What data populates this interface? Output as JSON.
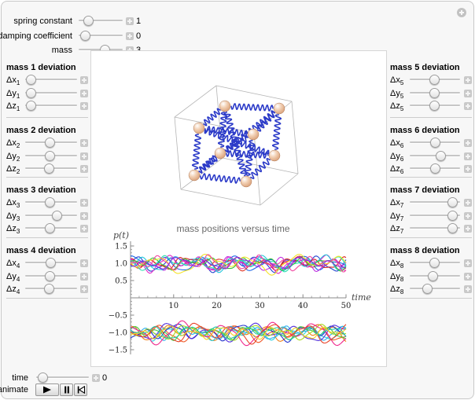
{
  "icons": {
    "stepper": "plus-icon",
    "corner": "plus-circle-icon",
    "animate_buttons": [
      "play-icon",
      "pause-icon",
      "reset-to-start-icon"
    ]
  },
  "top_sliders": [
    {
      "label": "spring constant",
      "value": "1",
      "fraction": 0.13
    },
    {
      "label": "damping coefficient",
      "value": "0",
      "fraction": 0.04
    },
    {
      "label": "mass",
      "value": "3",
      "fraction": 0.62
    }
  ],
  "mass_groups": [
    {
      "title": "mass 1 deviation",
      "side": "left",
      "rows": [
        {
          "base": "Δx",
          "sub": "1",
          "fraction": 0.02
        },
        {
          "base": "Δy",
          "sub": "1",
          "fraction": 0.02
        },
        {
          "base": "Δz",
          "sub": "1",
          "fraction": 0.02
        }
      ]
    },
    {
      "title": "mass 2 deviation",
      "side": "left",
      "rows": [
        {
          "base": "Δx",
          "sub": "2",
          "fraction": 0.48
        },
        {
          "base": "Δy",
          "sub": "2",
          "fraction": 0.48
        },
        {
          "base": "Δz",
          "sub": "2",
          "fraction": 0.45
        }
      ]
    },
    {
      "title": "mass 3 deviation",
      "side": "left",
      "rows": [
        {
          "base": "Δx",
          "sub": "3",
          "fraction": 0.48
        },
        {
          "base": "Δy",
          "sub": "3",
          "fraction": 0.64
        },
        {
          "base": "Δz",
          "sub": "3",
          "fraction": 0.48
        }
      ]
    },
    {
      "title": "mass 4 deviation",
      "side": "left",
      "rows": [
        {
          "base": "Δx",
          "sub": "4",
          "fraction": 0.49
        },
        {
          "base": "Δy",
          "sub": "4",
          "fraction": 0.48
        },
        {
          "base": "Δz",
          "sub": "4",
          "fraction": 0.45
        }
      ]
    },
    {
      "title": "mass 5 deviation",
      "side": "right",
      "rows": [
        {
          "base": "Δx",
          "sub": "5",
          "fraction": 0.49
        },
        {
          "base": "Δy",
          "sub": "5",
          "fraction": 0.49
        },
        {
          "base": "Δz",
          "sub": "5",
          "fraction": 0.49
        }
      ]
    },
    {
      "title": "mass 6 deviation",
      "side": "right",
      "rows": [
        {
          "base": "Δx",
          "sub": "6",
          "fraction": 0.5
        },
        {
          "base": "Δy",
          "sub": "6",
          "fraction": 0.65
        },
        {
          "base": "Δz",
          "sub": "6",
          "fraction": 0.5
        }
      ]
    },
    {
      "title": "mass 7 deviation",
      "side": "right",
      "rows": [
        {
          "base": "Δx",
          "sub": "7",
          "fraction": 0.95
        },
        {
          "base": "Δy",
          "sub": "7",
          "fraction": 0.95
        },
        {
          "base": "Δz",
          "sub": "7",
          "fraction": 0.95
        }
      ]
    },
    {
      "title": "mass 8 deviation",
      "side": "right",
      "rows": [
        {
          "base": "Δx",
          "sub": "8",
          "fraction": 0.49
        },
        {
          "base": "Δy",
          "sub": "8",
          "fraction": 0.45
        },
        {
          "base": "Δz",
          "sub": "8",
          "fraction": 0.32
        }
      ]
    }
  ],
  "content": {
    "title": "mass positions versus time"
  },
  "bottom": {
    "time_label": "time",
    "time_value": "0",
    "time_fraction": 0.04,
    "animate_label": "animate"
  },
  "scene": {
    "box_corners": {
      "tb": [
        117,
        30
      ],
      "tr": [
        213,
        50
      ],
      "tf": [
        165,
        90
      ],
      "tl": [
        64,
        70
      ],
      "bb": [
        125,
        122
      ],
      "br": [
        221,
        142
      ],
      "bf": [
        173,
        182
      ],
      "bl": [
        72,
        162
      ]
    },
    "box_edges": [
      [
        "tb",
        "tr"
      ],
      [
        "tr",
        "tf"
      ],
      [
        "tf",
        "tl"
      ],
      [
        "tl",
        "tb"
      ],
      [
        "bb",
        "br"
      ],
      [
        "br",
        "bf"
      ],
      [
        "bf",
        "bl"
      ],
      [
        "bl",
        "bb"
      ],
      [
        "tb",
        "bb"
      ],
      [
        "tr",
        "br"
      ],
      [
        "tf",
        "bf"
      ],
      [
        "tl",
        "bl"
      ]
    ],
    "masses": [
      [
        128,
        56
      ],
      [
        197,
        59
      ],
      [
        164,
        92
      ],
      [
        95,
        84
      ],
      [
        122,
        116
      ],
      [
        191,
        119
      ],
      [
        155,
        152
      ],
      [
        89,
        144
      ]
    ],
    "springs": [
      [
        0,
        1
      ],
      [
        1,
        2
      ],
      [
        2,
        3
      ],
      [
        3,
        0
      ],
      [
        4,
        5
      ],
      [
        5,
        6
      ],
      [
        6,
        7
      ],
      [
        7,
        4
      ],
      [
        0,
        4
      ],
      [
        1,
        5
      ],
      [
        2,
        6
      ],
      [
        3,
        7
      ],
      [
        0,
        6
      ],
      [
        1,
        7
      ],
      [
        2,
        4
      ],
      [
        3,
        5
      ]
    ],
    "spring_color": "#2b3ac8",
    "box_color": "#b5b5b5",
    "sphere_colors": {
      "highlight": "#ffffff",
      "mid": "#f2d0b4",
      "dark": "#d9a078",
      "edge": "#b07a58"
    }
  },
  "chart_data": {
    "type": "line",
    "title": "mass positions versus time",
    "xlabel": "time",
    "ylabel": "p(t)",
    "xlim": [
      0,
      50
    ],
    "ylim": [
      -1.6,
      1.6
    ],
    "xticks": [
      10,
      20,
      30,
      40,
      50
    ],
    "yticks": [
      1.5,
      1.0,
      0.5,
      -0.5,
      -1.0,
      -1.5
    ],
    "grid": false,
    "legend": false,
    "series": [
      {
        "color": "#2244d0",
        "base": 1,
        "amp": [
          0.13,
          0.1,
          0.05
        ],
        "freq": [
          0.9,
          0.45,
          1.7
        ],
        "phase": [
          0.0,
          2.1,
          4.0
        ]
      },
      {
        "color": "#1b66e8",
        "base": 1,
        "amp": [
          0.15,
          0.08,
          0.04
        ],
        "freq": [
          0.8,
          0.35,
          1.5
        ],
        "phase": [
          1.2,
          0.5,
          2.2
        ]
      },
      {
        "color": "#d81d1d",
        "base": 1,
        "amp": [
          0.1,
          0.07,
          0.05
        ],
        "freq": [
          1.0,
          0.5,
          1.8
        ],
        "phase": [
          2.5,
          1.0,
          0.3
        ]
      },
      {
        "color": "#e43b2c",
        "base": 1,
        "amp": [
          0.12,
          0.06,
          0.05
        ],
        "freq": [
          0.75,
          0.3,
          1.6
        ],
        "phase": [
          4.0,
          2.8,
          1.1
        ]
      },
      {
        "color": "#e426c8",
        "base": 1,
        "amp": [
          0.16,
          0.09,
          0.05
        ],
        "freq": [
          0.85,
          0.4,
          1.9
        ],
        "phase": [
          0.7,
          3.3,
          2.6
        ]
      },
      {
        "color": "#c02ee0",
        "base": 1,
        "amp": [
          0.12,
          0.1,
          0.04
        ],
        "freq": [
          1.05,
          0.5,
          2.0
        ],
        "phase": [
          3.1,
          1.7,
          0.9
        ]
      },
      {
        "color": "#22c8dc",
        "base": 1,
        "amp": [
          0.14,
          0.09,
          0.05
        ],
        "freq": [
          0.9,
          0.42,
          1.6
        ],
        "phase": [
          5.0,
          2.0,
          3.7
        ]
      },
      {
        "color": "#2ee0b0",
        "base": 1,
        "amp": [
          0.12,
          0.08,
          0.05
        ],
        "freq": [
          0.78,
          0.36,
          1.7
        ],
        "phase": [
          1.9,
          4.2,
          0.6
        ]
      },
      {
        "color": "#35c435",
        "base": 1,
        "amp": [
          0.11,
          0.08,
          0.04
        ],
        "freq": [
          0.95,
          0.48,
          1.8
        ],
        "phase": [
          2.2,
          0.2,
          5.1
        ]
      },
      {
        "color": "#f4e32a",
        "base": 1,
        "amp": [
          0.18,
          0.12,
          0.05
        ],
        "freq": [
          0.6,
          0.3,
          1.4
        ],
        "phase": [
          3.8,
          1.4,
          2.9
        ]
      },
      {
        "color": "#f046a0",
        "base": 1,
        "amp": [
          0.12,
          0.09,
          0.05
        ],
        "freq": [
          1.1,
          0.5,
          2.1
        ],
        "phase": [
          0.4,
          5.0,
          1.8
        ]
      },
      {
        "color": "#8a2be2",
        "base": 1,
        "amp": [
          0.1,
          0.08,
          0.04
        ],
        "freq": [
          0.88,
          0.44,
          1.75
        ],
        "phase": [
          4.6,
          2.4,
          3.2
        ]
      },
      {
        "color": "#f08018",
        "base": -1,
        "amp": [
          0.14,
          0.1,
          0.05
        ],
        "freq": [
          0.82,
          0.4,
          1.6
        ],
        "phase": [
          1.0,
          3.0,
          0.2
        ]
      },
      {
        "color": "#f05a28",
        "base": -1,
        "amp": [
          0.16,
          0.09,
          0.05
        ],
        "freq": [
          0.7,
          0.33,
          1.5
        ],
        "phase": [
          2.8,
          0.8,
          4.4
        ]
      },
      {
        "color": "#28d0e0",
        "base": -1,
        "amp": [
          0.13,
          0.08,
          0.05
        ],
        "freq": [
          0.92,
          0.46,
          1.8
        ],
        "phase": [
          0.2,
          2.6,
          1.5
        ]
      },
      {
        "color": "#30b0f0",
        "base": -1,
        "amp": [
          0.12,
          0.09,
          0.04
        ],
        "freq": [
          1.0,
          0.5,
          1.9
        ],
        "phase": [
          3.5,
          1.2,
          2.0
        ]
      },
      {
        "color": "#2233cc",
        "base": -1,
        "amp": [
          0.15,
          0.1,
          0.05
        ],
        "freq": [
          0.85,
          0.38,
          1.65
        ],
        "phase": [
          5.2,
          3.9,
          0.8
        ]
      },
      {
        "color": "#5533dd",
        "base": -1,
        "amp": [
          0.17,
          0.09,
          0.05
        ],
        "freq": [
          0.65,
          0.3,
          1.45
        ],
        "phase": [
          2.0,
          4.8,
          3.0
        ]
      },
      {
        "color": "#44cc44",
        "base": -1,
        "amp": [
          0.12,
          0.08,
          0.05
        ],
        "freq": [
          0.95,
          0.47,
          1.85
        ],
        "phase": [
          1.5,
          0.6,
          4.9
        ]
      },
      {
        "color": "#a8d820",
        "base": -1,
        "amp": [
          0.13,
          0.09,
          0.04
        ],
        "freq": [
          0.8,
          0.4,
          1.7
        ],
        "phase": [
          4.2,
          2.2,
          1.3
        ]
      },
      {
        "color": "#f0288c",
        "base": -1,
        "amp": [
          0.22,
          0.12,
          0.05
        ],
        "freq": [
          0.6,
          0.28,
          1.5
        ],
        "phase": [
          0.9,
          3.6,
          2.4
        ]
      },
      {
        "color": "#e8452a",
        "base": -1,
        "amp": [
          0.2,
          0.1,
          0.05
        ],
        "freq": [
          0.72,
          0.34,
          1.55
        ],
        "phase": [
          3.3,
          1.8,
          5.0
        ]
      },
      {
        "color": "#20c8a8",
        "base": -1,
        "amp": [
          0.12,
          0.08,
          0.04
        ],
        "freq": [
          0.9,
          0.45,
          1.75
        ],
        "phase": [
          2.6,
          0.4,
          3.9
        ]
      },
      {
        "color": "#f4d020",
        "base": -1,
        "amp": [
          0.11,
          0.08,
          0.04
        ],
        "freq": [
          1.05,
          0.5,
          2.0
        ],
        "phase": [
          4.9,
          2.9,
          0.5
        ]
      }
    ]
  }
}
